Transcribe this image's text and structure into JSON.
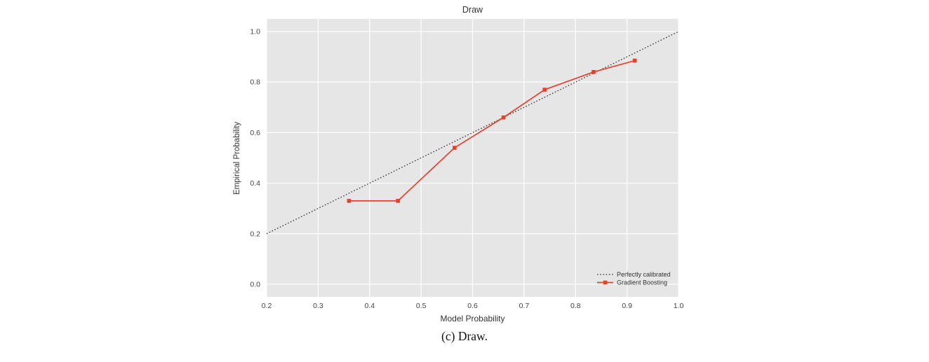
{
  "figure": {
    "title": "Draw",
    "xlabel": "Model Probability",
    "ylabel": "Empirical Probability",
    "caption": "(c) Draw."
  },
  "chart_data": {
    "type": "line",
    "title": "Draw",
    "xlabel": "Model Probability",
    "ylabel": "Empirical Probability",
    "xlim": [
      0.2,
      1.0
    ],
    "ylim": [
      -0.05,
      1.05
    ],
    "x_ticks": [
      0.2,
      0.3,
      0.4,
      0.5,
      0.6,
      0.7,
      0.8,
      0.9,
      1.0
    ],
    "y_ticks": [
      0.0,
      0.2,
      0.4,
      0.6,
      0.8,
      1.0
    ],
    "grid": true,
    "legend_position": "lower right",
    "series": [
      {
        "name": "Perfectly calibrated",
        "color": "#333333",
        "dash": "1.6 2.6",
        "marker": "none",
        "x": [
          0.2,
          1.0
        ],
        "y": [
          0.2,
          1.0
        ]
      },
      {
        "name": "Gradient Boosting",
        "color": "#e8402d",
        "dash": "",
        "marker": "square",
        "x": [
          0.36,
          0.455,
          0.565,
          0.66,
          0.74,
          0.835,
          0.915
        ],
        "y": [
          0.33,
          0.33,
          0.54,
          0.66,
          0.77,
          0.84,
          0.885
        ]
      }
    ]
  },
  "colors": {
    "plot_bg": "#e6e6e6",
    "grid": "#ffffff",
    "tick_text": "#444444",
    "legend_text": "#333333"
  }
}
